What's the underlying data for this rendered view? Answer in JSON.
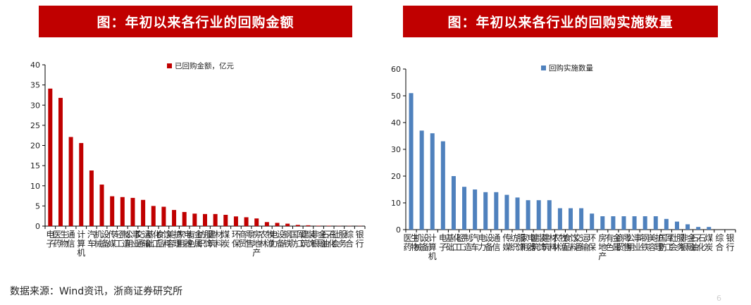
{
  "banners": {
    "left_title": "图：年初以来各行业的回购金额",
    "right_title": "图：年初以来各行业的回购实施数量"
  },
  "colors": {
    "banner_bg": "#c00000",
    "left_bar": "#c00000",
    "right_bar": "#4f81bd"
  },
  "source": "数据来源：Wind资讯，浙商证券研究所",
  "page_number": "6",
  "chart_data": [
    {
      "type": "bar",
      "legend": "已回购金额，亿元",
      "legend_position": "top-right",
      "grid": false,
      "ylim": [
        0,
        40
      ],
      "yticks": [
        0,
        5,
        10,
        15,
        20,
        25,
        30,
        35,
        40
      ],
      "categories": [
        "电子",
        "医药生物",
        "通信",
        "计算机",
        "汽车",
        "机械设备",
        "传媒",
        "轻工制造",
        "公用事业",
        "交通运输",
        "基础化工",
        "食品饮料",
        "美容护理",
        "家用电器",
        "有色金属",
        "纺织服饰",
        "建筑材料",
        "煤炭",
        "环保",
        "商贸零售",
        "房地产",
        "农林牧渔",
        "电力设备",
        "钢铁",
        "国防军工",
        "建筑装饰",
        "非银金融",
        "石油石化",
        "社会服务",
        "综合",
        "银行"
      ],
      "series": [
        {
          "name": "已回购金额，亿元",
          "values": [
            34.1,
            31.8,
            22.1,
            20.6,
            13.8,
            10.3,
            7.4,
            7.2,
            7.0,
            6.5,
            5.0,
            4.8,
            4.0,
            3.5,
            3.1,
            3.0,
            3.0,
            2.8,
            2.4,
            2.2,
            1.9,
            1.0,
            0.8,
            0.6,
            0.3,
            0.2,
            0.1,
            0.1,
            0.05,
            0.05,
            0.05
          ]
        }
      ]
    },
    {
      "type": "bar",
      "legend": "回购实施数量",
      "legend_position": "top-right",
      "grid": false,
      "ylim": [
        0,
        60
      ],
      "yticks": [
        0,
        10,
        20,
        30,
        40,
        50,
        60
      ],
      "categories": [
        "医药生物",
        "机械设备",
        "计算机",
        "电子",
        "基础化工",
        "轻工制造",
        "汽车",
        "电力设备",
        "通信",
        "传媒",
        "纺织服饰",
        "家用电器",
        "建筑装饰",
        "建筑材料",
        "农林牧渔",
        "食品饮料",
        "交通运输",
        "环保",
        "房地产",
        "有色金属",
        "商贸零售",
        "公用事业",
        "钢铁",
        "美容护理",
        "国防军工",
        "社会服务",
        "非银金融",
        "石油石化",
        "煤炭",
        "综合",
        "银行"
      ],
      "series": [
        {
          "name": "回购实施数量",
          "values": [
            51,
            37,
            36,
            33,
            20,
            16,
            15,
            14,
            14,
            13,
            12,
            11,
            11,
            11,
            8,
            8,
            8,
            6,
            5,
            5,
            5,
            5,
            5,
            5,
            4,
            3,
            2,
            1,
            1,
            0,
            0
          ]
        }
      ]
    }
  ]
}
